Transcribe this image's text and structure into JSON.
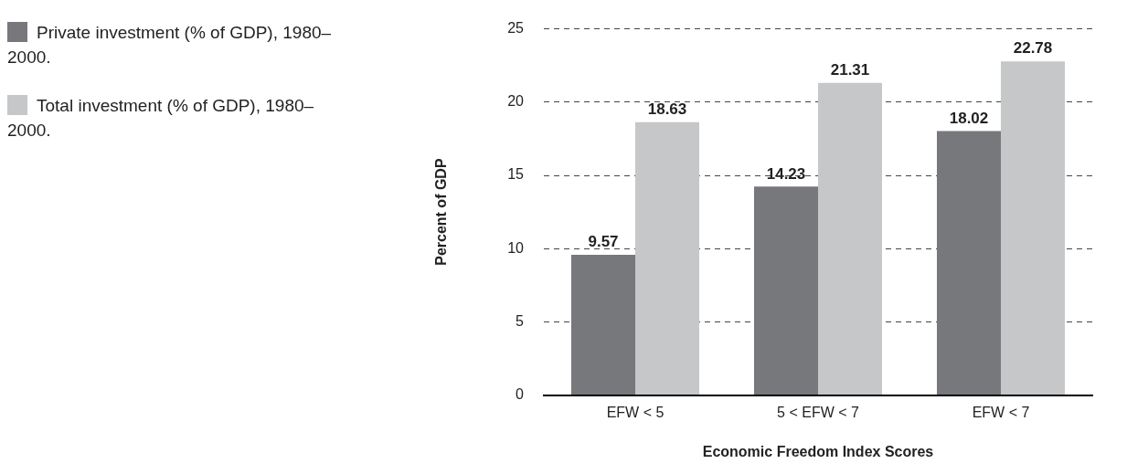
{
  "chart_data": {
    "type": "bar",
    "xlabel": "Economic Freedom Index Scores",
    "ylabel": "Percent of GDP",
    "categories": [
      "EFW < 5",
      "5 < EFW < 7",
      "EFW < 7"
    ],
    "series": [
      {
        "name": "Private investment (% of GDP), 1980–2000.",
        "color": "#77787b",
        "values": [
          9.57,
          14.23,
          18.02
        ]
      },
      {
        "name": "Total investment (% of GDP), 1980–2000.",
        "color": "#c6c7c9",
        "values": [
          18.63,
          21.31,
          22.78
        ]
      }
    ],
    "ylim": [
      0,
      25
    ],
    "yticks": [
      0,
      5,
      10,
      15,
      20,
      25
    ],
    "grid": "y",
    "legend": "left",
    "data_labels": true
  }
}
